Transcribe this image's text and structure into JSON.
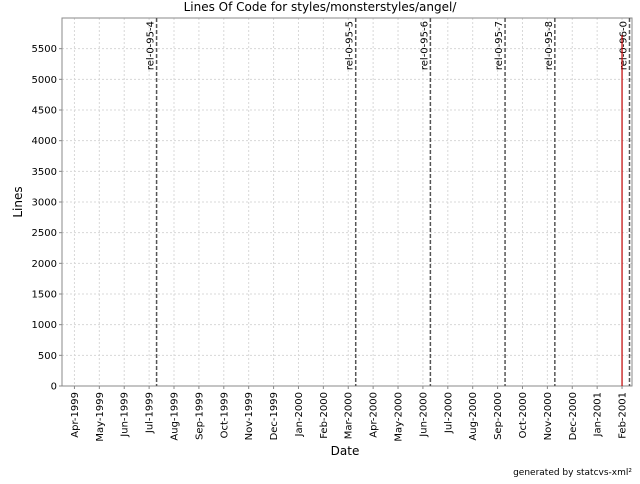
{
  "chart_data": {
    "type": "line",
    "title": "Lines Of Code for styles/monsterstyles/angel/",
    "x_label": "Date",
    "y_label": "Lines",
    "categories": [
      "Apr-1999",
      "May-1999",
      "Jun-1999",
      "Jul-1999",
      "Aug-1999",
      "Sep-1999",
      "Oct-1999",
      "Nov-1999",
      "Dec-1999",
      "Jan-2000",
      "Feb-2000",
      "Mar-2000",
      "Apr-2000",
      "May-2000",
      "Jun-2000",
      "Jul-2000",
      "Aug-2000",
      "Sep-2000",
      "Oct-2000",
      "Nov-2000",
      "Dec-2000",
      "Jan-2001",
      "Feb-2001"
    ],
    "series": [
      {
        "color": "#c00000",
        "x": [
          "Feb-2001",
          "Feb-2001"
        ],
        "values": [
          0,
          5720
        ]
      }
    ],
    "markers": [
      {
        "label": "rel-0-95-4",
        "x": "Jul-1999"
      },
      {
        "label": "rel-0-95-5",
        "x": "Mar-2000"
      },
      {
        "label": "rel-0-95-6",
        "x": "Jun-2000"
      },
      {
        "label": "rel-0-95-7",
        "x": "Sep-2000"
      },
      {
        "label": "rel-0-95-8",
        "x": "Nov-2000"
      },
      {
        "label": "rel-0-96-0",
        "x": "Feb-2001"
      }
    ],
    "ylim": [
      0,
      6000
    ],
    "yticks": [
      0,
      500,
      1000,
      1500,
      2000,
      2500,
      3000,
      3500,
      4000,
      4500,
      5000,
      5500
    ],
    "grid": true,
    "footer": "generated by statcvs-xml²"
  }
}
